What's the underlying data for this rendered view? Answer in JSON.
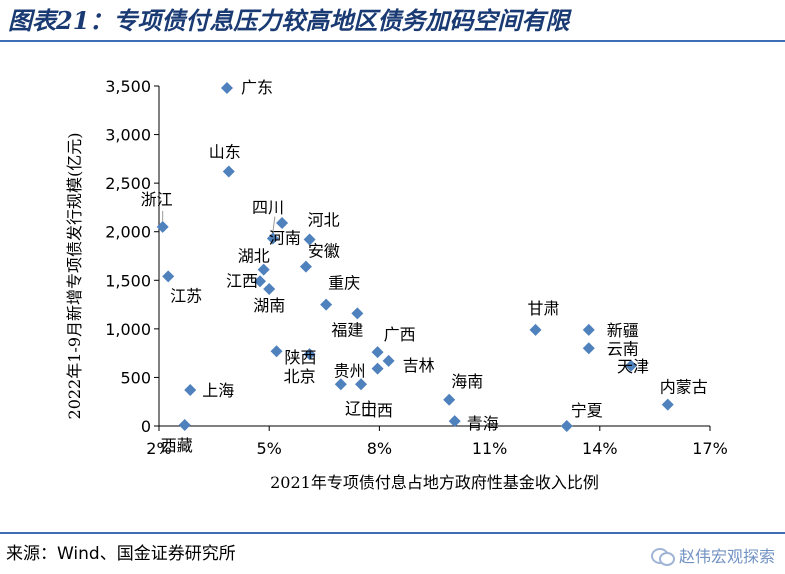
{
  "header": {
    "title": "图表21：专项债付息压力较高地区债务加码空间有限"
  },
  "footer": {
    "source": "来源：Wind、国金证券研究所",
    "watermark": "赵伟宏观探索"
  },
  "chart_data": {
    "type": "scatter",
    "xlabel": "2021年专项债付息占地方政府性基金收入比例",
    "ylabel": "2022年1-9月新增专项债发行规模(亿元)",
    "xlim": [
      0.02,
      0.17
    ],
    "ylim": [
      0,
      3500
    ],
    "xticks": [
      0.02,
      0.05,
      0.08,
      0.11,
      0.14,
      0.17
    ],
    "xtick_labels": [
      "2%",
      "5%",
      "8%",
      "11%",
      "14%",
      "17%"
    ],
    "yticks": [
      0,
      500,
      1000,
      1500,
      2000,
      2500,
      3000,
      3500
    ],
    "ytick_labels": [
      "0",
      "500",
      "1,000",
      "1,500",
      "2,000",
      "2,500",
      "3,000",
      "3,500"
    ],
    "grid": false,
    "marker_color": "#4f81bd",
    "points": [
      {
        "name": "广东",
        "x": 0.0385,
        "y": 3480
      },
      {
        "name": "山东",
        "x": 0.039,
        "y": 2620
      },
      {
        "name": "浙江",
        "x": 0.021,
        "y": 2050
      },
      {
        "name": "四川",
        "x": 0.0535,
        "y": 2090
      },
      {
        "name": "河北",
        "x": 0.061,
        "y": 1920
      },
      {
        "name": "河南",
        "x": 0.051,
        "y": 1930
      },
      {
        "name": "湖北",
        "x": 0.0485,
        "y": 1610
      },
      {
        "name": "安徽",
        "x": 0.06,
        "y": 1640
      },
      {
        "name": "江西",
        "x": 0.0475,
        "y": 1490
      },
      {
        "name": "湖南",
        "x": 0.05,
        "y": 1410
      },
      {
        "name": "江苏",
        "x": 0.0225,
        "y": 1540
      },
      {
        "name": "重庆",
        "x": 0.0655,
        "y": 1250
      },
      {
        "name": "福建",
        "x": 0.074,
        "y": 1160
      },
      {
        "name": "陕西",
        "x": 0.052,
        "y": 770
      },
      {
        "name": "北京",
        "x": 0.061,
        "y": 740
      },
      {
        "name": "广西",
        "x": 0.0795,
        "y": 760
      },
      {
        "name": "吉林",
        "x": 0.0825,
        "y": 670
      },
      {
        "name": "贵州",
        "x": 0.0795,
        "y": 590
      },
      {
        "name": "辽宁",
        "x": 0.075,
        "y": 430
      },
      {
        "name": "上海",
        "x": 0.0285,
        "y": 370
      },
      {
        "name": "西藏",
        "x": 0.027,
        "y": 10
      },
      {
        "name": "山西",
        "x": 0.0695,
        "y": 430
      },
      {
        "name": "海南",
        "x": 0.099,
        "y": 270
      },
      {
        "name": "青海",
        "x": 0.1005,
        "y": 50
      },
      {
        "name": "甘肃",
        "x": 0.1225,
        "y": 990
      },
      {
        "name": "新疆",
        "x": 0.137,
        "y": 990
      },
      {
        "name": "云南",
        "x": 0.137,
        "y": 800
      },
      {
        "name": "天津",
        "x": 0.1485,
        "y": 620
      },
      {
        "name": "宁夏",
        "x": 0.131,
        "y": 0
      },
      {
        "name": "内蒙古",
        "x": 0.1585,
        "y": 220
      }
    ]
  }
}
